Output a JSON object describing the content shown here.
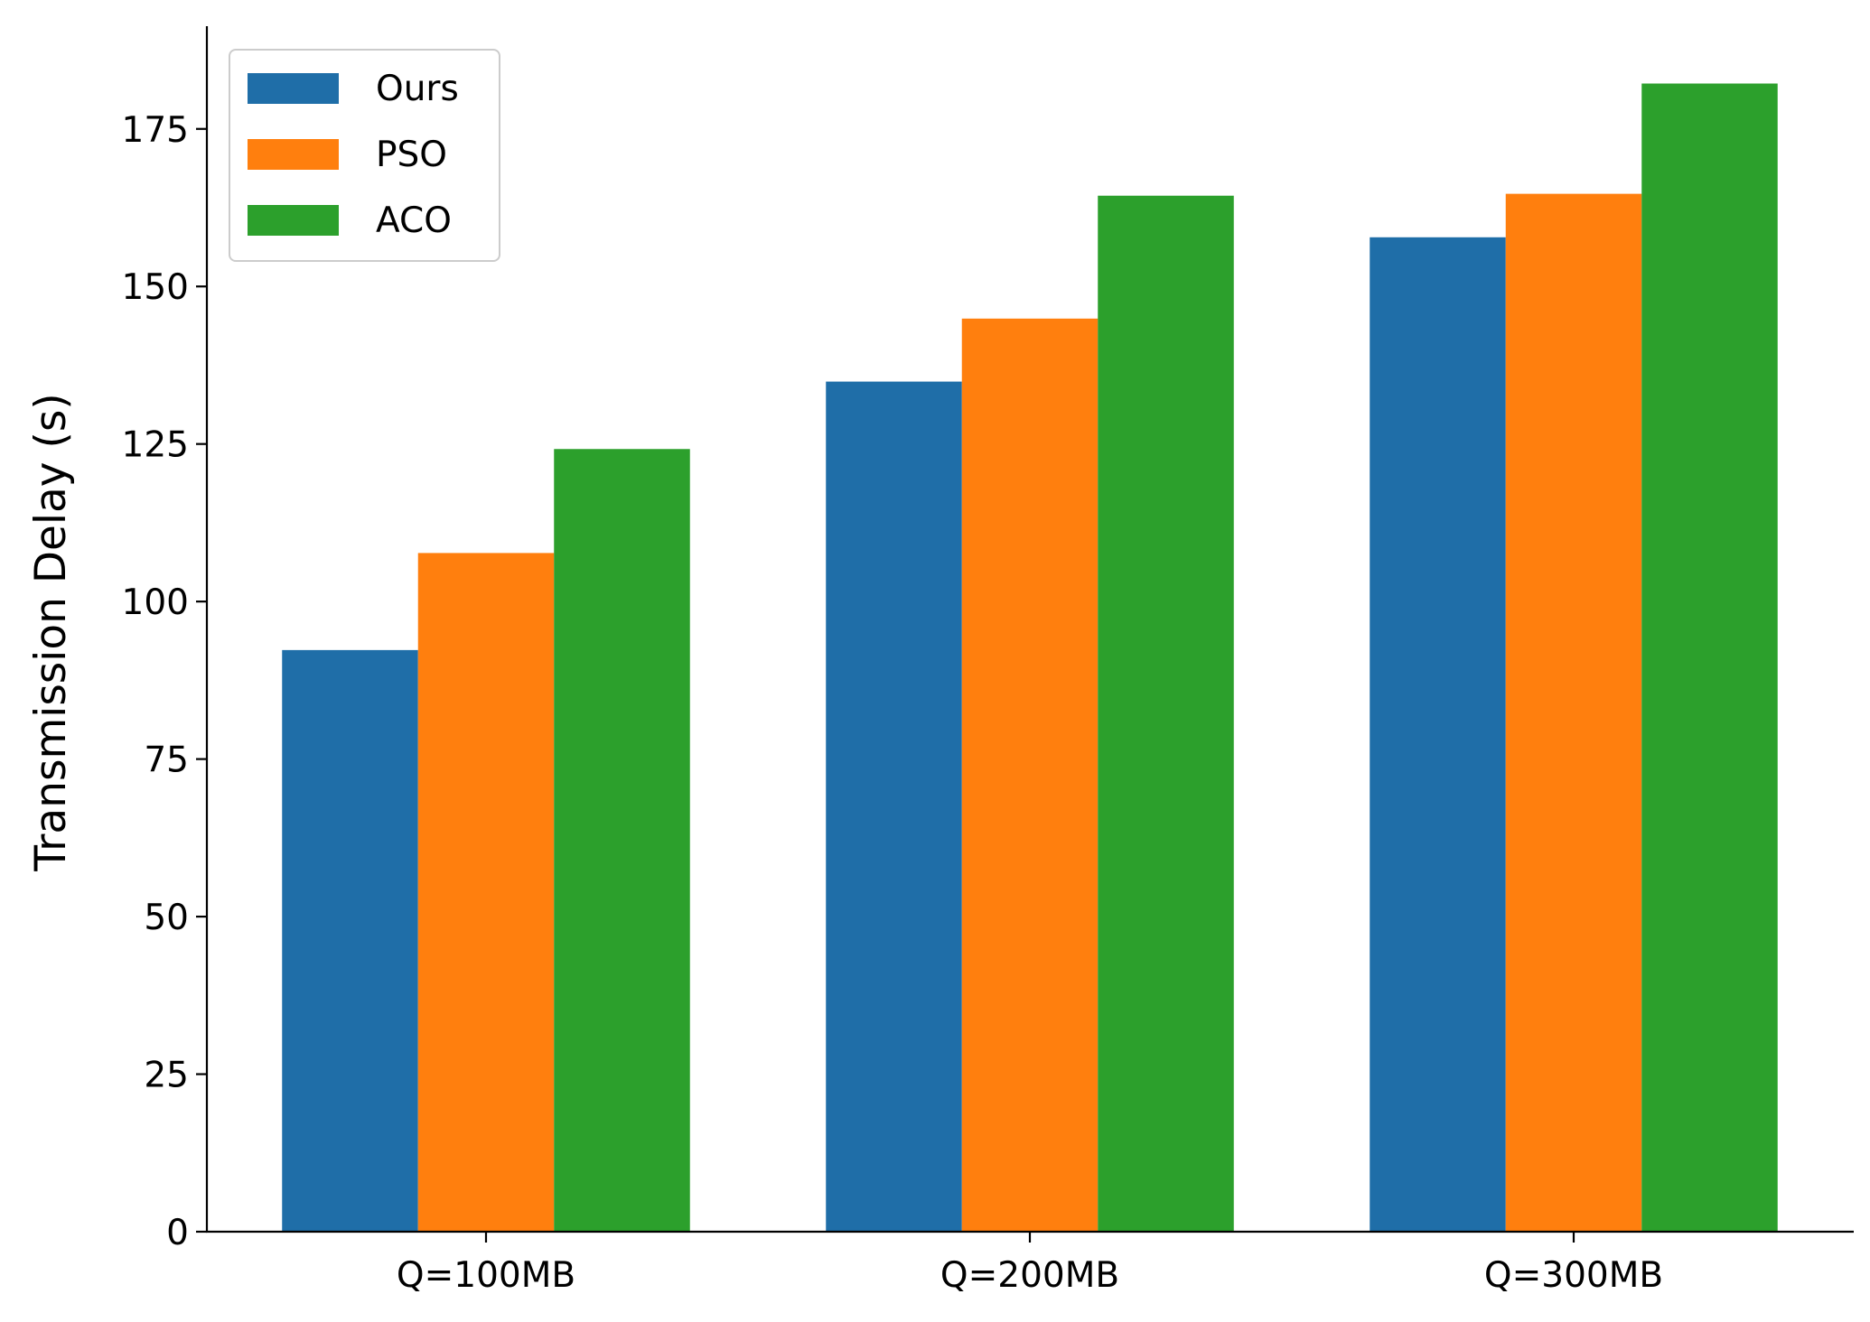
{
  "chart_data": {
    "type": "bar",
    "categories": [
      "Q=100MB",
      "Q=200MB",
      "Q=300MB"
    ],
    "series": [
      {
        "name": "Ours",
        "color": "#1f6ea8",
        "values": [
          92.3,
          134.9,
          157.8
        ]
      },
      {
        "name": "PSO",
        "color": "#ff7f0e",
        "values": [
          107.7,
          144.9,
          164.7
        ]
      },
      {
        "name": "ACO",
        "color": "#2ca02c",
        "values": [
          124.2,
          164.4,
          182.2
        ]
      }
    ],
    "title": "",
    "xlabel": "",
    "ylabel": "Transmission Delay (s)",
    "ylim": [
      0,
      191.3
    ],
    "yticks": [
      0,
      25,
      50,
      75,
      100,
      125,
      150,
      175
    ],
    "grid": false,
    "legend_position": "top-left"
  }
}
